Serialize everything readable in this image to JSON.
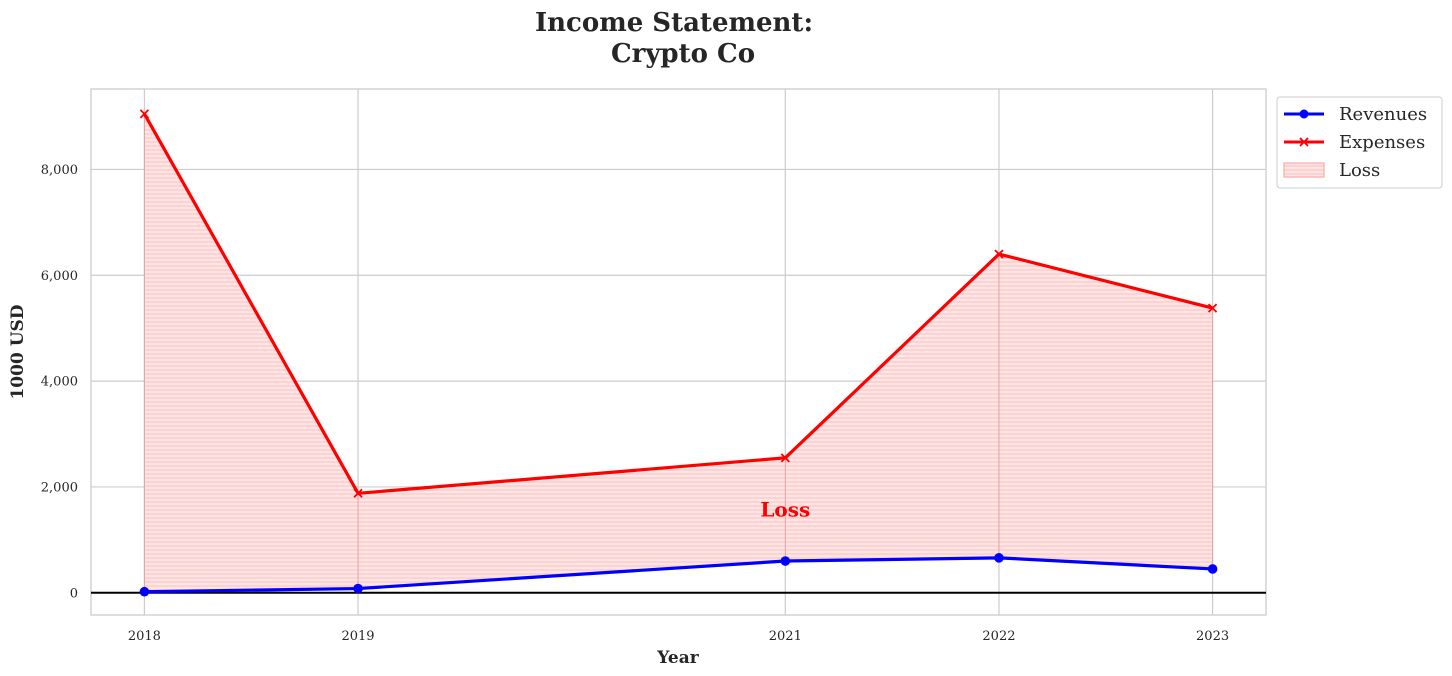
{
  "chart_data": {
    "type": "line",
    "title_line1": "Income Statement:",
    "title_line2": "Crypto Co",
    "xlabel": "Year",
    "ylabel": "1000 USD",
    "x": [
      2018,
      2019,
      2021,
      2022,
      2023
    ],
    "xlim": [
      2017.75,
      2023.25
    ],
    "ylim": [
      -420,
      9520
    ],
    "yticks": [
      0,
      2000,
      4000,
      6000,
      8000
    ],
    "ytick_labels": [
      "0",
      "2,000",
      "4,000",
      "6,000",
      "8,000"
    ],
    "xtick_labels": [
      "2018",
      "2019",
      "2021",
      "2022",
      "2023"
    ],
    "grid": true,
    "zero_line": true,
    "series": [
      {
        "name": "Revenues",
        "values": [
          20,
          80,
          600,
          660,
          450
        ],
        "color": "#0000ff",
        "marker": "circle"
      },
      {
        "name": "Expenses",
        "values": [
          9050,
          1880,
          2550,
          6400,
          5380
        ],
        "color": "#ff0000",
        "marker": "x"
      }
    ],
    "fill": {
      "name": "Loss",
      "between": [
        "Revenues",
        "Expenses"
      ],
      "color": "#ff0000"
    },
    "annotation": {
      "text": "Loss",
      "x": 2021,
      "y": 1570,
      "color": "#ff0000"
    },
    "legend": {
      "position": "outside-right-top",
      "entries": [
        "Revenues",
        "Expenses",
        "Loss"
      ]
    }
  }
}
